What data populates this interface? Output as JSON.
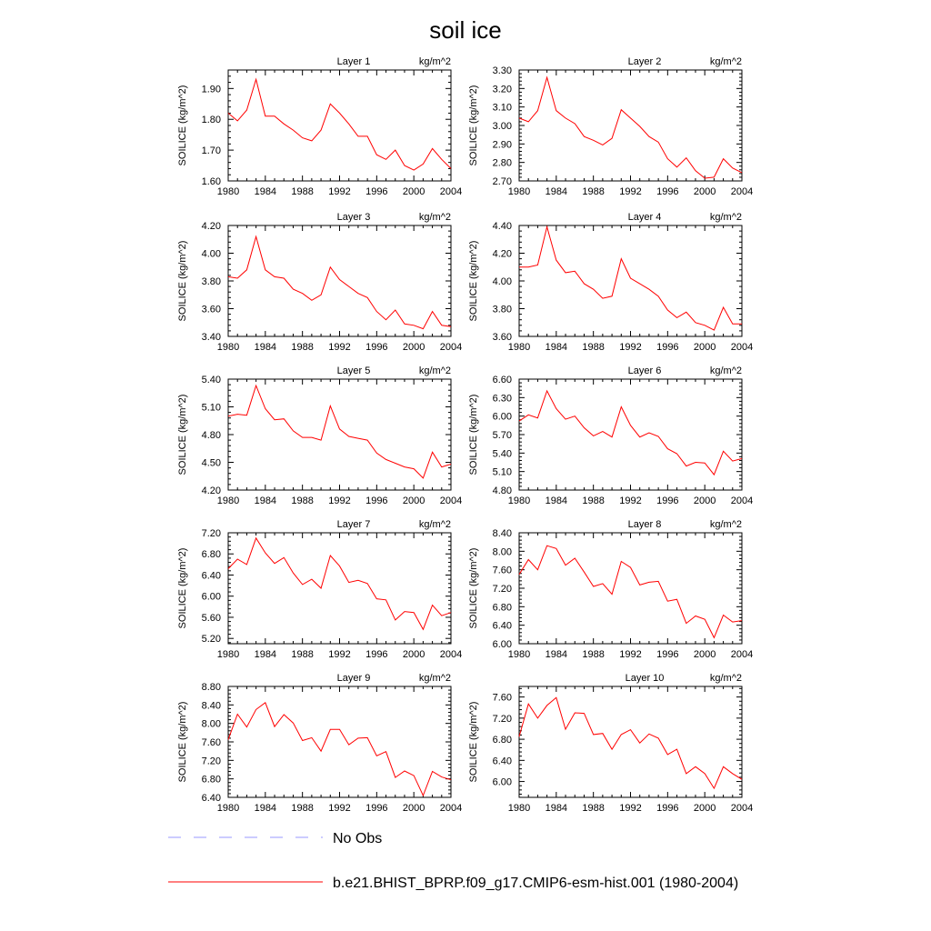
{
  "figure": {
    "title": "soil ice",
    "units_label": "kg/m^2",
    "ylabel": "SOILICE  (kg/m^2)",
    "legend": {
      "obs_label": "No Obs",
      "model_label": "b.e21.BHIST_BPRP.f09_g17.CMIP6-esm-hist.001 (1980-2004)",
      "obs_color": "#9999ff",
      "model_color": "#ff0000"
    }
  },
  "chart_data": [
    {
      "type": "line",
      "title": "Layer 1",
      "xlabel": "",
      "ylabel": "SOILICE  (kg/m^2)",
      "xlim": [
        1980,
        2004
      ],
      "xticks": [
        "1980",
        "1984",
        "1988",
        "1992",
        "1996",
        "2000",
        "2004"
      ],
      "ylim": [
        1.6,
        1.96
      ],
      "yticks": [
        "1.60",
        "1.70",
        "1.80",
        "1.90"
      ],
      "x": [
        1980,
        1981,
        1982,
        1983,
        1984,
        1985,
        1986,
        1987,
        1988,
        1989,
        1990,
        1991,
        1992,
        1993,
        1994,
        1995,
        1996,
        1997,
        1998,
        1999,
        2000,
        2001,
        2002,
        2003,
        2004
      ],
      "series": [
        {
          "name": "b.e21.BHIST_BPRP.f09_g17.CMIP6-esm-hist.001 (1980-2004)",
          "values": [
            1.82,
            1.795,
            1.83,
            1.93,
            1.81,
            1.81,
            1.785,
            1.765,
            1.74,
            1.73,
            1.765,
            1.85,
            1.82,
            1.785,
            1.745,
            1.745,
            1.685,
            1.67,
            1.7,
            1.65,
            1.635,
            1.655,
            1.705,
            1.67,
            1.64
          ]
        }
      ]
    },
    {
      "type": "line",
      "title": "Layer 2",
      "xlabel": "",
      "ylabel": "SOILICE  (kg/m^2)",
      "xlim": [
        1980,
        2004
      ],
      "xticks": [
        "1980",
        "1984",
        "1988",
        "1992",
        "1996",
        "2000",
        "2004"
      ],
      "ylim": [
        2.7,
        3.3
      ],
      "yticks": [
        "2.70",
        "2.80",
        "2.90",
        "3.00",
        "3.10",
        "3.20",
        "3.30"
      ],
      "x": [
        1980,
        1981,
        1982,
        1983,
        1984,
        1985,
        1986,
        1987,
        1988,
        1989,
        1990,
        1991,
        1992,
        1993,
        1994,
        1995,
        1996,
        1997,
        1998,
        1999,
        2000,
        2001,
        2002,
        2003,
        2004
      ],
      "series": [
        {
          "name": "b.e21.BHIST_BPRP.f09_g17.CMIP6-esm-hist.001 (1980-2004)",
          "values": [
            3.04,
            3.02,
            3.08,
            3.26,
            3.08,
            3.04,
            3.01,
            2.94,
            2.92,
            2.895,
            2.93,
            3.085,
            3.04,
            2.995,
            2.94,
            2.91,
            2.82,
            2.775,
            2.825,
            2.755,
            2.715,
            2.72,
            2.82,
            2.77,
            2.745
          ]
        }
      ]
    },
    {
      "type": "line",
      "title": "Layer 3",
      "xlabel": "",
      "ylabel": "SOILICE  (kg/m^2)",
      "xlim": [
        1980,
        2004
      ],
      "xticks": [
        "1980",
        "1984",
        "1988",
        "1992",
        "1996",
        "2000",
        "2004"
      ],
      "ylim": [
        3.4,
        4.2
      ],
      "yticks": [
        "3.40",
        "3.60",
        "3.80",
        "4.00",
        "4.20"
      ],
      "x": [
        1980,
        1981,
        1982,
        1983,
        1984,
        1985,
        1986,
        1987,
        1988,
        1989,
        1990,
        1991,
        1992,
        1993,
        1994,
        1995,
        1996,
        1997,
        1998,
        1999,
        2000,
        2001,
        2002,
        2003,
        2004
      ],
      "series": [
        {
          "name": "b.e21.BHIST_BPRP.f09_g17.CMIP6-esm-hist.001 (1980-2004)",
          "values": [
            3.83,
            3.82,
            3.88,
            4.12,
            3.88,
            3.83,
            3.82,
            3.74,
            3.71,
            3.66,
            3.7,
            3.9,
            3.81,
            3.76,
            3.71,
            3.68,
            3.58,
            3.52,
            3.59,
            3.49,
            3.48,
            3.455,
            3.58,
            3.48,
            3.47
          ]
        }
      ]
    },
    {
      "type": "line",
      "title": "Layer 4",
      "xlabel": "",
      "ylabel": "SOILICE  (kg/m^2)",
      "xlim": [
        1980,
        2004
      ],
      "xticks": [
        "1980",
        "1984",
        "1988",
        "1992",
        "1996",
        "2000",
        "2004"
      ],
      "ylim": [
        3.6,
        4.4
      ],
      "yticks": [
        "3.60",
        "3.80",
        "4.00",
        "4.20",
        "4.40"
      ],
      "x": [
        1980,
        1981,
        1982,
        1983,
        1984,
        1985,
        1986,
        1987,
        1988,
        1989,
        1990,
        1991,
        1992,
        1993,
        1994,
        1995,
        1996,
        1997,
        1998,
        1999,
        2000,
        2001,
        2002,
        2003,
        2004
      ],
      "series": [
        {
          "name": "b.e21.BHIST_BPRP.f09_g17.CMIP6-esm-hist.001 (1980-2004)",
          "values": [
            4.1,
            4.1,
            4.115,
            4.39,
            4.15,
            4.06,
            4.07,
            3.98,
            3.94,
            3.875,
            3.89,
            4.16,
            4.02,
            3.98,
            3.94,
            3.89,
            3.79,
            3.735,
            3.775,
            3.7,
            3.68,
            3.645,
            3.81,
            3.69,
            3.69
          ]
        }
      ]
    },
    {
      "type": "line",
      "title": "Layer 5",
      "xlabel": "",
      "ylabel": "SOILICE  (kg/m^2)",
      "xlim": [
        1980,
        2004
      ],
      "xticks": [
        "1980",
        "1984",
        "1988",
        "1992",
        "1996",
        "2000",
        "2004"
      ],
      "ylim": [
        4.2,
        5.4
      ],
      "yticks": [
        "4.20",
        "4.50",
        "4.80",
        "5.10",
        "5.40"
      ],
      "x": [
        1980,
        1981,
        1982,
        1983,
        1984,
        1985,
        1986,
        1987,
        1988,
        1989,
        1990,
        1991,
        1992,
        1993,
        1994,
        1995,
        1996,
        1997,
        1998,
        1999,
        2000,
        2001,
        2002,
        2003,
        2004
      ],
      "series": [
        {
          "name": "b.e21.BHIST_BPRP.f09_g17.CMIP6-esm-hist.001 (1980-2004)",
          "values": [
            5.0,
            5.02,
            5.01,
            5.33,
            5.08,
            4.96,
            4.97,
            4.84,
            4.77,
            4.77,
            4.74,
            5.11,
            4.86,
            4.78,
            4.76,
            4.74,
            4.6,
            4.53,
            4.49,
            4.45,
            4.43,
            4.33,
            4.61,
            4.45,
            4.48
          ]
        }
      ]
    },
    {
      "type": "line",
      "title": "Layer 6",
      "xlabel": "",
      "ylabel": "SOILICE  (kg/m^2)",
      "xlim": [
        1980,
        2004
      ],
      "xticks": [
        "1980",
        "1984",
        "1988",
        "1992",
        "1996",
        "2000",
        "2004"
      ],
      "ylim": [
        4.8,
        6.6
      ],
      "yticks": [
        "4.80",
        "5.10",
        "5.40",
        "5.70",
        "6.00",
        "6.30",
        "6.60"
      ],
      "x": [
        1980,
        1981,
        1982,
        1983,
        1984,
        1985,
        1986,
        1987,
        1988,
        1989,
        1990,
        1991,
        1992,
        1993,
        1994,
        1995,
        1996,
        1997,
        1998,
        1999,
        2000,
        2001,
        2002,
        2003,
        2004
      ],
      "series": [
        {
          "name": "b.e21.BHIST_BPRP.f09_g17.CMIP6-esm-hist.001 (1980-2004)",
          "values": [
            5.92,
            6.02,
            5.97,
            6.41,
            6.12,
            5.95,
            6.0,
            5.81,
            5.68,
            5.75,
            5.66,
            6.15,
            5.85,
            5.66,
            5.73,
            5.67,
            5.47,
            5.39,
            5.19,
            5.25,
            5.24,
            5.05,
            5.43,
            5.27,
            5.31
          ]
        }
      ]
    },
    {
      "type": "line",
      "title": "Layer 7",
      "xlabel": "",
      "ylabel": "SOILICE  (kg/m^2)",
      "xlim": [
        1980,
        2004
      ],
      "xticks": [
        "1980",
        "1984",
        "1988",
        "1992",
        "1996",
        "2000",
        "2004"
      ],
      "ylim": [
        5.1,
        7.2
      ],
      "yticks": [
        "5.20",
        "5.60",
        "6.00",
        "6.40",
        "6.80",
        "7.20"
      ],
      "x": [
        1980,
        1981,
        1982,
        1983,
        1984,
        1985,
        1986,
        1987,
        1988,
        1989,
        1990,
        1991,
        1992,
        1993,
        1994,
        1995,
        1996,
        1997,
        1998,
        1999,
        2000,
        2001,
        2002,
        2003,
        2004
      ],
      "series": [
        {
          "name": "b.e21.BHIST_BPRP.f09_g17.CMIP6-esm-hist.001 (1980-2004)",
          "values": [
            6.52,
            6.7,
            6.6,
            7.1,
            6.82,
            6.62,
            6.73,
            6.44,
            6.22,
            6.32,
            6.15,
            6.77,
            6.57,
            6.26,
            6.3,
            6.24,
            5.95,
            5.93,
            5.55,
            5.71,
            5.69,
            5.37,
            5.83,
            5.63,
            5.69
          ]
        }
      ]
    },
    {
      "type": "line",
      "title": "Layer 8",
      "xlabel": "",
      "ylabel": "SOILICE  (kg/m^2)",
      "xlim": [
        1980,
        2004
      ],
      "xticks": [
        "1980",
        "1984",
        "1988",
        "1992",
        "1996",
        "2000",
        "2004"
      ],
      "ylim": [
        6.0,
        8.4
      ],
      "yticks": [
        "6.00",
        "6.40",
        "6.80",
        "7.20",
        "7.60",
        "8.00",
        "8.40"
      ],
      "x": [
        1980,
        1981,
        1982,
        1983,
        1984,
        1985,
        1986,
        1987,
        1988,
        1989,
        1990,
        1991,
        1992,
        1993,
        1994,
        1995,
        1996,
        1997,
        1998,
        1999,
        2000,
        2001,
        2002,
        2003,
        2004
      ],
      "series": [
        {
          "name": "b.e21.BHIST_BPRP.f09_g17.CMIP6-esm-hist.001 (1980-2004)",
          "values": [
            7.5,
            7.82,
            7.6,
            8.12,
            8.06,
            7.7,
            7.85,
            7.55,
            7.24,
            7.3,
            7.07,
            7.78,
            7.65,
            7.27,
            7.33,
            7.35,
            6.92,
            6.96,
            6.44,
            6.6,
            6.53,
            6.13,
            6.62,
            6.47,
            6.5
          ]
        }
      ]
    },
    {
      "type": "line",
      "title": "Layer 9",
      "xlabel": "",
      "ylabel": "SOILICE  (kg/m^2)",
      "xlim": [
        1980,
        2004
      ],
      "xticks": [
        "1980",
        "1984",
        "1988",
        "1992",
        "1996",
        "2000",
        "2004"
      ],
      "ylim": [
        6.4,
        8.8
      ],
      "yticks": [
        "6.40",
        "6.80",
        "7.20",
        "7.60",
        "8.00",
        "8.40",
        "8.80"
      ],
      "x": [
        1980,
        1981,
        1982,
        1983,
        1984,
        1985,
        1986,
        1987,
        1988,
        1989,
        1990,
        1991,
        1992,
        1993,
        1994,
        1995,
        1996,
        1997,
        1998,
        1999,
        2000,
        2001,
        2002,
        2003,
        2004
      ],
      "series": [
        {
          "name": "b.e21.BHIST_BPRP.f09_g17.CMIP6-esm-hist.001 (1980-2004)",
          "values": [
            7.65,
            8.2,
            7.92,
            8.3,
            8.45,
            7.93,
            8.19,
            8.01,
            7.63,
            7.69,
            7.4,
            7.87,
            7.87,
            7.54,
            7.68,
            7.69,
            7.3,
            7.39,
            6.83,
            6.97,
            6.87,
            6.44,
            6.96,
            6.84,
            6.78
          ]
        }
      ]
    },
    {
      "type": "line",
      "title": "Layer 10",
      "xlabel": "",
      "ylabel": "SOILICE  (kg/m^2)",
      "xlim": [
        1980,
        2004
      ],
      "xticks": [
        "1980",
        "1984",
        "1988",
        "1992",
        "1996",
        "2000",
        "2004"
      ],
      "ylim": [
        5.7,
        7.8
      ],
      "yticks": [
        "6.00",
        "6.40",
        "6.80",
        "7.20",
        "7.60"
      ],
      "x": [
        1980,
        1981,
        1982,
        1983,
        1984,
        1985,
        1986,
        1987,
        1988,
        1989,
        1990,
        1991,
        1992,
        1993,
        1994,
        1995,
        1996,
        1997,
        1998,
        1999,
        2000,
        2001,
        2002,
        2003,
        2004
      ],
      "series": [
        {
          "name": "b.e21.BHIST_BPRP.f09_g17.CMIP6-esm-hist.001 (1980-2004)",
          "values": [
            6.85,
            7.47,
            7.2,
            7.44,
            7.59,
            6.99,
            7.3,
            7.29,
            6.89,
            6.91,
            6.61,
            6.89,
            6.98,
            6.73,
            6.9,
            6.82,
            6.51,
            6.61,
            6.15,
            6.28,
            6.15,
            5.87,
            6.28,
            6.15,
            6.04
          ]
        }
      ]
    }
  ]
}
